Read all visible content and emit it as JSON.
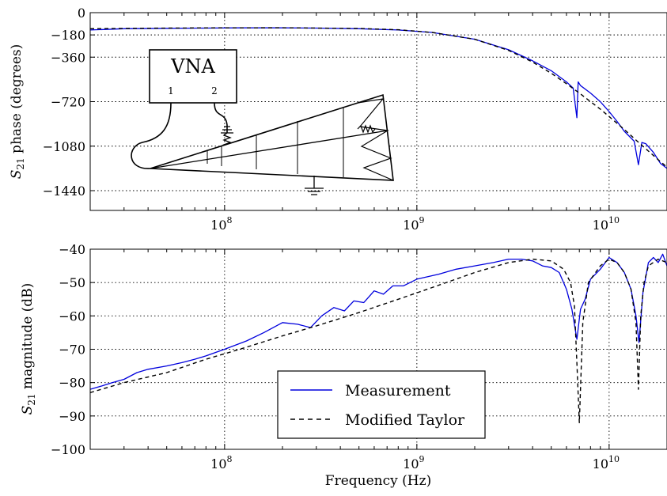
{
  "chart_data": [
    {
      "type": "line",
      "panel": "phase",
      "ylabel": "S21 phase (degrees)",
      "ylabel_main": "S",
      "ylabel_sub": "21",
      "ylabel_rest": " phase (degrees)",
      "xlabel": "",
      "xscale": "log",
      "xlim": [
        20000000.0,
        20000000000.0
      ],
      "ylim": [
        -1600,
        0
      ],
      "yticks": [
        0,
        -180,
        -360,
        -720,
        -1080,
        -1440
      ],
      "ytick_labels": [
        "0",
        "−180",
        "−360",
        "−720",
        "−1080",
        "−1440"
      ],
      "xticks": [
        100000000.0,
        1000000000.0,
        10000000000.0
      ],
      "xtick_labels": [
        {
          "base": "10",
          "exp": "8"
        },
        {
          "base": "10",
          "exp": "9"
        },
        {
          "base": "10",
          "exp": "10"
        }
      ],
      "grid": true,
      "series": [
        {
          "name": "Measurement",
          "color": "#0000dd",
          "style": "solid",
          "x": [
            20000000.0,
            30000000.0,
            50000000.0,
            80000000.0,
            120000000.0,
            200000000.0,
            300000000.0,
            500000000.0,
            800000000.0,
            1200000000.0,
            2000000000.0,
            3000000000.0,
            4000000000.0,
            5000000000.0,
            6000000000.0,
            6500000000.0,
            6800000000.0,
            6900000000.0,
            7100000000.0,
            8000000000.0,
            9000000000.0,
            10000000000.0,
            11000000000.0,
            12000000000.0,
            13500000000.0,
            14200000000.0,
            14800000000.0,
            15500000000.0,
            17000000000.0,
            18500000000.0,
            20000000000.0
          ],
          "y": [
            -140,
            -130,
            -127,
            -125,
            -123,
            -123,
            -125,
            -130,
            -140,
            -160,
            -215,
            -300,
            -390,
            -470,
            -560,
            -610,
            -850,
            -560,
            -590,
            -650,
            -720,
            -800,
            -880,
            -960,
            -1040,
            -1230,
            -1050,
            -1060,
            -1130,
            -1220,
            -1260
          ]
        },
        {
          "name": "Modified Taylor",
          "color": "#000000",
          "style": "dashed",
          "x": [
            20000000.0,
            50000000.0,
            100000000.0,
            200000000.0,
            500000000.0,
            800000000.0,
            1200000000.0,
            2000000000.0,
            3000000000.0,
            4000000000.0,
            5000000000.0,
            6000000000.0,
            7000000000.0,
            8000000000.0,
            9000000000.0,
            10000000000.0,
            12000000000.0,
            14000000000.0,
            16000000000.0,
            18000000000.0,
            20000000000.0
          ],
          "y": [
            -130,
            -125,
            -123,
            -122,
            -128,
            -138,
            -160,
            -215,
            -305,
            -400,
            -490,
            -575,
            -650,
            -720,
            -780,
            -840,
            -945,
            -1040,
            -1120,
            -1190,
            -1250
          ]
        }
      ]
    },
    {
      "type": "line",
      "panel": "magnitude",
      "ylabel": "S21 magnitude (dB)",
      "ylabel_main": "S",
      "ylabel_sub": "21",
      "ylabel_rest": " magnitude (dB)",
      "xlabel": "Frequency (Hz)",
      "xscale": "log",
      "xlim": [
        20000000.0,
        20000000000.0
      ],
      "ylim": [
        -100,
        -40
      ],
      "yticks": [
        -40,
        -50,
        -60,
        -70,
        -80,
        -90,
        -100
      ],
      "ytick_labels": [
        "−40",
        "−50",
        "−60",
        "−70",
        "−80",
        "−90",
        "−100"
      ],
      "xticks": [
        100000000.0,
        1000000000.0,
        10000000000.0
      ],
      "xtick_labels": [
        {
          "base": "10",
          "exp": "8"
        },
        {
          "base": "10",
          "exp": "9"
        },
        {
          "base": "10",
          "exp": "10"
        }
      ],
      "grid": true,
      "legend": {
        "placement": "lower-center",
        "entries": [
          {
            "label": "Measurement",
            "color": "#0000dd",
            "style": "solid"
          },
          {
            "label": "Modified Taylor",
            "color": "#000000",
            "style": "dashed"
          }
        ]
      },
      "series": [
        {
          "name": "Measurement",
          "color": "#0000dd",
          "style": "solid",
          "x": [
            20000000.0,
            23000000.0,
            26000000.0,
            30000000.0,
            35000000.0,
            40000000.0,
            50000000.0,
            60000000.0,
            70000000.0,
            80000000.0,
            100000000.0,
            130000000.0,
            160000000.0,
            200000000.0,
            240000000.0,
            280000000.0,
            320000000.0,
            370000000.0,
            420000000.0,
            470000000.0,
            530000000.0,
            600000000.0,
            670000000.0,
            750000000.0,
            850000000.0,
            1000000000.0,
            1300000000.0,
            1600000000.0,
            2000000000.0,
            2500000000.0,
            3000000000.0,
            3500000000.0,
            4000000000.0,
            4500000000.0,
            5000000000.0,
            5500000000.0,
            6000000000.0,
            6400000000.0,
            6800000000.0,
            7100000000.0,
            7500000000.0,
            8000000000.0,
            9000000000.0,
            10000000000.0,
            11000000000.0,
            12000000000.0,
            13000000000.0,
            13800000000.0,
            14300000000.0,
            15000000000.0,
            16000000000.0,
            17000000000.0,
            18000000000.0,
            19000000000.0,
            20000000000.0
          ],
          "y": [
            -82,
            -81,
            -80,
            -79,
            -77,
            -76,
            -75,
            -74,
            -73,
            -72,
            -70,
            -67.5,
            -65,
            -62,
            -62.5,
            -63.5,
            -60,
            -57.5,
            -58.5,
            -55.5,
            -56,
            -52.5,
            -53.5,
            -51,
            -51,
            -49,
            -47.5,
            -46,
            -45,
            -44,
            -43,
            -43,
            -43.5,
            -45,
            -45.5,
            -47,
            -52,
            -58,
            -67,
            -58,
            -55,
            -49,
            -46,
            -42.5,
            -44,
            -47,
            -52,
            -60,
            -68,
            -53,
            -44,
            -42.5,
            -44,
            -41.5,
            -45
          ]
        },
        {
          "name": "Modified Taylor",
          "color": "#000000",
          "style": "dashed",
          "x": [
            20000000.0,
            30000000.0,
            50000000.0,
            80000000.0,
            120000000.0,
            200000000.0,
            300000000.0,
            500000000.0,
            800000000.0,
            1200000000.0,
            2000000000.0,
            3000000000.0,
            4000000000.0,
            5000000000.0,
            5800000000.0,
            6300000000.0,
            6600000000.0,
            6800000000.0,
            7000000000.0,
            7300000000.0,
            7800000000.0,
            9000000000.0,
            10000000000.0,
            11000000000.0,
            12000000000.0,
            13000000000.0,
            13800000000.0,
            14200000000.0,
            14600000000.0,
            15200000000.0,
            16000000000.0,
            18000000000.0,
            20000000000.0
          ],
          "y": [
            -83,
            -80,
            -77,
            -73,
            -70,
            -66,
            -63,
            -59,
            -55,
            -51.5,
            -47,
            -44,
            -43,
            -43.5,
            -46,
            -50,
            -57,
            -74,
            -92,
            -62,
            -50,
            -45,
            -43,
            -44,
            -47,
            -52,
            -62,
            -82,
            -60,
            -50,
            -45,
            -43,
            -44
          ]
        }
      ]
    }
  ],
  "inset": {
    "vna_label": "VNA",
    "port1_label": "1",
    "port2_label": "2"
  }
}
